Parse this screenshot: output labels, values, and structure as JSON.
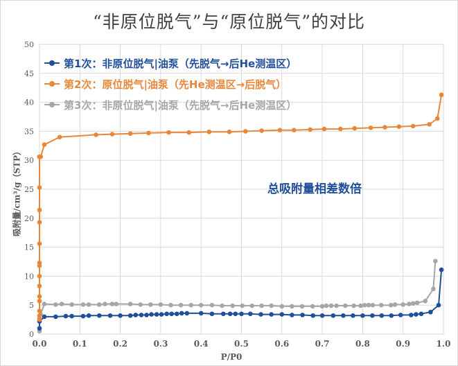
{
  "title": "“非原位脱气”与“原位脱气”的对比",
  "annotation": "总吸附量相差数倍",
  "colors": {
    "series1": "#1f4e9a",
    "series2": "#e8873a",
    "series3": "#a6a6a6",
    "grid": "#d9d9d9",
    "axis_text": "#595959"
  },
  "legend": [
    {
      "label": "第1次：非原位脱气|油泵（先脱气→后He测温区）"
    },
    {
      "label": "第2次：原位脱气|油泵（先He测温区→后脱气）"
    },
    {
      "label": "第3次：非原位脱气|油泵（先脱气→后He测温区）"
    }
  ],
  "chart_data": {
    "type": "line",
    "title": "“非原位脱气”与“原位脱气”的对比",
    "xlabel": "P/P0",
    "ylabel": "吸附量/cm³/g（STP）",
    "xlim": [
      0,
      1.0
    ],
    "ylim": [
      0,
      50
    ],
    "xticks": [
      "0.0",
      "0.1",
      "0.2",
      "0.3",
      "0.4",
      "0.5",
      "0.6",
      "0.7",
      "0.8",
      "0.9",
      "1.0"
    ],
    "yticks": [
      "0",
      "5",
      "10",
      "15",
      "20",
      "25",
      "30",
      "35",
      "40",
      "45",
      "50"
    ],
    "grid": true,
    "legend_position": "upper-left inside",
    "annotations": [
      {
        "text": "总吸附量相差数倍",
        "x": 0.57,
        "y": 25.5
      }
    ],
    "series": [
      {
        "name": "第1次：非原位脱气|油泵（先脱气→后He测温区）",
        "color": "#1f4e9a",
        "x": [
          0.0,
          0.0,
          0.012,
          0.04,
          0.065,
          0.08,
          0.108,
          0.122,
          0.148,
          0.175,
          0.2,
          0.225,
          0.238,
          0.252,
          0.265,
          0.277,
          0.29,
          0.302,
          0.315,
          0.327,
          0.34,
          0.352,
          0.365,
          0.4,
          0.427,
          0.455,
          0.472,
          0.485,
          0.5,
          0.522,
          0.548,
          0.574,
          0.6,
          0.625,
          0.651,
          0.677,
          0.7,
          0.727,
          0.752,
          0.776,
          0.8,
          0.824,
          0.847,
          0.871,
          0.894,
          0.92,
          0.932,
          0.945,
          0.968,
          0.988,
          0.995
        ],
        "y": [
          1.0,
          2.2,
          3.0,
          3.0,
          3.1,
          3.1,
          3.1,
          3.2,
          3.2,
          3.2,
          3.2,
          3.2,
          3.3,
          3.3,
          3.3,
          3.4,
          3.4,
          3.4,
          3.5,
          3.5,
          3.5,
          3.6,
          3.6,
          3.6,
          3.5,
          3.5,
          3.5,
          3.5,
          3.5,
          3.5,
          3.4,
          3.4,
          3.4,
          3.3,
          3.3,
          3.2,
          3.2,
          3.2,
          3.2,
          3.2,
          3.2,
          3.2,
          3.2,
          3.2,
          3.3,
          3.3,
          3.4,
          3.5,
          3.8,
          5.0,
          11.1
        ]
      },
      {
        "name": "第2次：原位脱气|油泵（先He测温区→后脱气）",
        "color": "#e8873a",
        "x": [
          0.0,
          0.0,
          0.0,
          0.0,
          0.0,
          0.0,
          0.0,
          0.0,
          0.0,
          0.0,
          0.0,
          0.0,
          0.0,
          0.0,
          0.0,
          0.0,
          0.0,
          0.003,
          0.012,
          0.05,
          0.14,
          0.18,
          0.225,
          0.27,
          0.32,
          0.37,
          0.42,
          0.47,
          0.51,
          0.55,
          0.595,
          0.63,
          0.67,
          0.705,
          0.745,
          0.78,
          0.82,
          0.855,
          0.89,
          0.925,
          0.965,
          0.985,
          0.995
        ],
        "y": [
          2.5,
          3.2,
          4.0,
          5.7,
          6.5,
          8.3,
          10.0,
          11.8,
          12.3,
          15.6,
          19.3,
          21.4,
          25.3,
          30.6,
          30.6,
          30.6,
          30.6,
          30.6,
          32.7,
          34.0,
          34.4,
          34.5,
          34.6,
          34.7,
          34.8,
          34.8,
          34.9,
          34.9,
          35.0,
          35.1,
          35.2,
          35.2,
          35.3,
          35.4,
          35.4,
          35.5,
          35.6,
          35.7,
          35.8,
          35.9,
          36.2,
          37.2,
          41.3
        ]
      },
      {
        "name": "第3次：非原位脱气|油泵（先脱气→后He测温区）",
        "color": "#a6a6a6",
        "x": [
          0.0,
          0.0,
          0.003,
          0.012,
          0.04,
          0.055,
          0.08,
          0.108,
          0.122,
          0.148,
          0.162,
          0.18,
          0.19,
          0.225,
          0.25,
          0.275,
          0.3,
          0.325,
          0.35,
          0.375,
          0.4,
          0.427,
          0.452,
          0.478,
          0.502,
          0.526,
          0.55,
          0.574,
          0.6,
          0.625,
          0.65,
          0.676,
          0.7,
          0.71,
          0.722,
          0.735,
          0.757,
          0.778,
          0.795,
          0.805,
          0.815,
          0.825,
          0.846,
          0.87,
          0.88,
          0.9,
          0.915,
          0.925,
          0.935,
          0.955,
          0.975,
          0.98
        ],
        "y": [
          0.5,
          2.7,
          3.4,
          5.2,
          5.1,
          5.2,
          5.1,
          5.1,
          5.1,
          5.1,
          5.2,
          5.2,
          5.2,
          5.2,
          5.1,
          5.1,
          5.1,
          5.0,
          5.0,
          5.0,
          5.0,
          5.0,
          4.9,
          4.9,
          4.9,
          4.9,
          4.9,
          4.9,
          4.8,
          4.8,
          4.8,
          4.8,
          4.8,
          4.9,
          4.9,
          4.9,
          4.9,
          4.9,
          4.9,
          5.0,
          5.0,
          5.0,
          5.0,
          5.0,
          5.1,
          5.1,
          5.2,
          5.3,
          5.4,
          5.7,
          7.8,
          12.6
        ]
      }
    ]
  }
}
